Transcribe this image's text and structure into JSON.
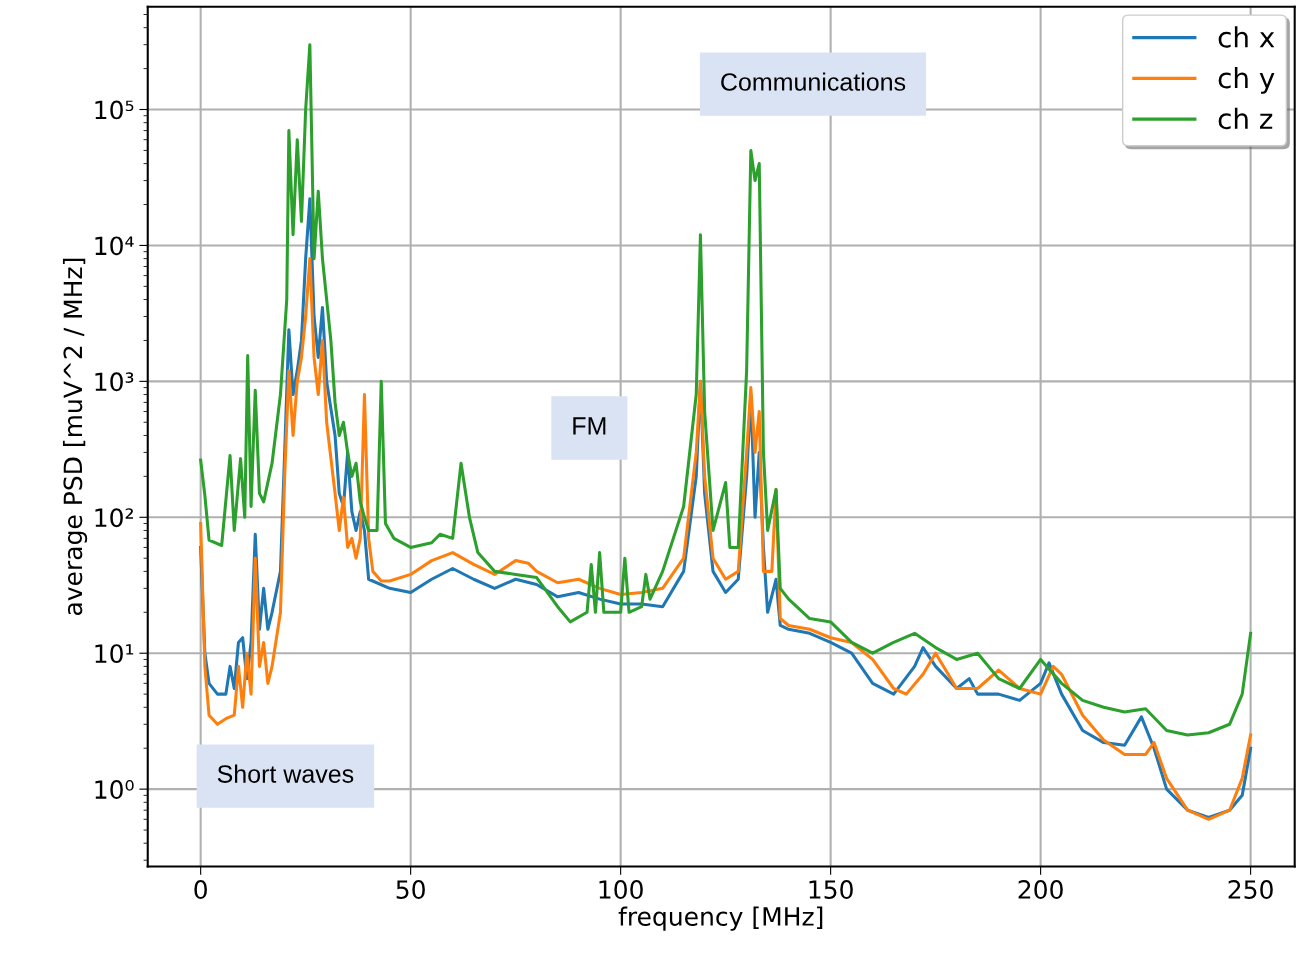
{
  "chart_data": {
    "type": "line",
    "xlabel": "frequency [MHz]",
    "ylabel": "average PSD [muV^2 / MHz]",
    "log": "y",
    "grid": true,
    "legend": "top right",
    "marker": "none",
    "line_style": "solid",
    "xlim": [
      -12.6,
      260.5
    ],
    "ylim": [
      0.27,
      570000
    ],
    "xticks": [
      0,
      50,
      100,
      150,
      200,
      250
    ],
    "yticks": [
      {
        "value": 1,
        "label": "10⁰"
      },
      {
        "value": 10,
        "label": "10¹"
      },
      {
        "value": 100,
        "label": "10²"
      },
      {
        "value": 1000,
        "label": "10³"
      },
      {
        "value": 10000,
        "label": "10⁴"
      },
      {
        "value": 100000,
        "label": "10⁵"
      }
    ],
    "annotations": [
      "Communications",
      "FM",
      "Short waves"
    ],
    "series": [
      {
        "name": "ch x",
        "color": "#1f77b4",
        "x": [
          0,
          1,
          2,
          4,
          6,
          7,
          8,
          9,
          10,
          11,
          12,
          13,
          14,
          15,
          16,
          17,
          19,
          20,
          21,
          22,
          23,
          24,
          25,
          26,
          27,
          28,
          29,
          30,
          32,
          33,
          34,
          35,
          36,
          37,
          38,
          39,
          40,
          45,
          50,
          55,
          60,
          65,
          70,
          75,
          80,
          85,
          90,
          95,
          100,
          105,
          110,
          115,
          118,
          119,
          120,
          122,
          125,
          128,
          130,
          131,
          132,
          133,
          134,
          135,
          137,
          138,
          140,
          145,
          150,
          155,
          160,
          165,
          170,
          172,
          175,
          180,
          183,
          185,
          190,
          195,
          200,
          202,
          205,
          210,
          215,
          220,
          224,
          227,
          230,
          235,
          240,
          245,
          248,
          250
        ],
        "values": [
          60,
          10,
          6,
          5,
          5,
          8,
          5.5,
          12,
          13,
          6.5,
          12,
          75,
          15,
          30,
          15,
          20,
          40,
          300,
          2400,
          800,
          1200,
          2000,
          8000,
          22000,
          3000,
          1500,
          3500,
          1000,
          400,
          150,
          120,
          300,
          110,
          80,
          110,
          80,
          35,
          30,
          28,
          35,
          42,
          35,
          30,
          35,
          32,
          26,
          28,
          25,
          23,
          23,
          22,
          40,
          200,
          1000,
          150,
          40,
          28,
          35,
          200,
          800,
          100,
          300,
          60,
          20,
          35,
          16,
          15,
          14,
          12,
          10,
          6,
          5,
          8,
          11,
          8,
          5.5,
          6.5,
          5,
          5,
          4.5,
          6,
          8.5,
          5,
          2.7,
          2.2,
          2.1,
          3.4,
          2,
          1,
          0.7,
          0.62,
          0.7,
          0.9,
          2
        ]
      },
      {
        "name": "ch y",
        "color": "#ff7f0e",
        "x": [
          0,
          1,
          2,
          4,
          6,
          8,
          9,
          10,
          11,
          12,
          13,
          14,
          15,
          16,
          17,
          19,
          20,
          21,
          22,
          23,
          24,
          25,
          26,
          27,
          28,
          29,
          30,
          32,
          33,
          34,
          35,
          36,
          37,
          38,
          39,
          40,
          41,
          43,
          45,
          50,
          55,
          60,
          65,
          70,
          75,
          78,
          80,
          85,
          90,
          95,
          100,
          105,
          110,
          115,
          118,
          119,
          120,
          122,
          125,
          128,
          130,
          131,
          132,
          133,
          134,
          136,
          137,
          138,
          140,
          145,
          150,
          155,
          160,
          165,
          168,
          172,
          175,
          178,
          180,
          185,
          190,
          195,
          200,
          203,
          205,
          210,
          215,
          220,
          225,
          227,
          230,
          235,
          240,
          245,
          248,
          250
        ],
        "values": [
          90,
          8,
          3.5,
          3,
          3.3,
          3.5,
          8,
          4,
          10,
          5,
          50,
          8,
          12,
          6,
          8,
          20,
          200,
          1200,
          400,
          1000,
          1500,
          3000,
          8000,
          1500,
          800,
          2000,
          500,
          150,
          80,
          140,
          60,
          70,
          50,
          70,
          800,
          70,
          40,
          34,
          34,
          38,
          48,
          55,
          45,
          38,
          48,
          46,
          40,
          33,
          35,
          30,
          27,
          28,
          30,
          50,
          300,
          1000,
          200,
          50,
          35,
          40,
          300,
          900,
          300,
          600,
          40,
          40,
          160,
          18,
          16,
          15,
          13,
          12,
          9,
          5.5,
          5,
          7,
          10,
          7,
          5.5,
          5.5,
          7.5,
          5.5,
          5,
          8,
          7,
          3.5,
          2.3,
          1.8,
          1.8,
          2.2,
          1.2,
          0.7,
          0.6,
          0.7,
          1.2,
          2.5
        ]
      },
      {
        "name": "ch z",
        "color": "#2ca02c",
        "x": [
          0,
          1,
          2,
          5,
          7,
          8,
          9.5,
          10.5,
          11.2,
          12,
          13,
          14,
          15,
          17,
          19,
          20.5,
          21,
          22,
          23,
          24,
          25,
          26,
          27,
          28,
          29,
          30,
          31,
          32,
          33,
          34,
          35,
          36,
          37,
          38,
          39,
          40,
          42,
          43,
          44,
          46,
          50,
          55,
          57,
          60,
          62,
          64,
          66,
          70,
          75,
          80,
          85,
          88,
          92,
          93,
          94,
          95,
          96,
          100,
          101,
          102,
          105,
          106,
          107,
          110,
          115,
          118,
          119,
          120,
          122,
          125,
          126,
          128,
          130,
          131,
          132,
          133,
          134,
          135,
          137,
          138,
          140,
          145,
          150,
          155,
          160,
          165,
          170,
          175,
          180,
          185,
          190,
          195,
          200,
          205,
          210,
          215,
          220,
          225,
          230,
          235,
          240,
          245,
          248,
          250
        ],
        "values": [
          263,
          145,
          68,
          62,
          285,
          80,
          270,
          100,
          1550,
          120,
          860,
          150,
          130,
          250,
          800,
          4000,
          70000,
          12000,
          60000,
          15000,
          100000,
          300000,
          8000,
          25000,
          8000,
          4000,
          2000,
          700,
          400,
          500,
          300,
          200,
          250,
          130,
          100,
          80,
          80,
          1000,
          90,
          70,
          60,
          65,
          75,
          70,
          250,
          100,
          55,
          40,
          38,
          36,
          22,
          17,
          20,
          45,
          20,
          55,
          20,
          20,
          50,
          20,
          22,
          38,
          25,
          40,
          120,
          800,
          12000,
          600,
          80,
          180,
          60,
          60,
          1200,
          50000,
          30000,
          40000,
          300,
          80,
          160,
          30,
          25,
          18,
          17,
          12,
          10,
          12,
          14,
          11,
          9,
          10,
          6.5,
          5.5,
          9,
          6,
          4.5,
          4,
          3.7,
          3.9,
          2.7,
          2.5,
          2.6,
          3,
          5,
          14
        ]
      }
    ]
  }
}
